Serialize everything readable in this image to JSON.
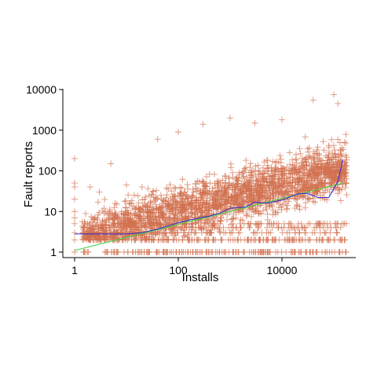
{
  "chart_data": {
    "type": "scatter",
    "title": "",
    "xlabel": "Installs",
    "ylabel": "Fault reports",
    "x_scale": "log10",
    "y_scale": "log10",
    "xlim": [
      0.7,
      200000
    ],
    "ylim": [
      0.8,
      11000
    ],
    "x_ticks": [
      1,
      100,
      10000
    ],
    "x_tick_labels": [
      "1",
      "100",
      "10000"
    ],
    "y_ticks": [
      1,
      10,
      100,
      1000,
      10000
    ],
    "y_tick_labels": [
      "1",
      "10",
      "100",
      "1000",
      "10000"
    ],
    "grid": false,
    "legend": "none",
    "colors": {
      "points": "#d2704f",
      "smooth_line": "#2b2bd6",
      "linear_fit": "#44d444"
    },
    "series": [
      {
        "kind": "points",
        "marker": "plus",
        "note_points": [
          [
            1,
            200
          ],
          [
            1,
            50
          ],
          [
            1,
            40
          ],
          [
            1,
            20
          ],
          [
            1,
            10
          ],
          [
            1,
            7
          ],
          [
            1,
            5
          ],
          [
            1,
            3
          ],
          [
            1,
            2
          ],
          [
            1,
            1
          ],
          [
            2,
            40
          ],
          [
            3,
            30
          ],
          [
            5,
            150
          ],
          [
            10,
            45
          ],
          [
            20,
            40
          ],
          [
            40,
            600
          ],
          [
            100,
            900
          ],
          [
            300,
            1400
          ],
          [
            1000,
            2000
          ],
          [
            3000,
            1500
          ],
          [
            10000,
            1800
          ],
          [
            40000,
            5500
          ],
          [
            100000,
            7500
          ],
          [
            120000,
            4500
          ]
        ]
      },
      {
        "kind": "smooth",
        "x": [
          1,
          3,
          10,
          20,
          40,
          70,
          100,
          200,
          400,
          700,
          1000,
          2000,
          3000,
          5000,
          10000,
          20000,
          30000,
          50000,
          80000,
          120000,
          150000
        ],
        "y": [
          2.8,
          2.8,
          2.8,
          3.0,
          3.7,
          4.6,
          5.3,
          6.5,
          7.7,
          9.6,
          12,
          13,
          17,
          16,
          19,
          27,
          28,
          22,
          22,
          55,
          190
        ]
      },
      {
        "kind": "linear_fit",
        "x": [
          1,
          150000
        ],
        "y": [
          1.1,
          50
        ]
      }
    ]
  }
}
